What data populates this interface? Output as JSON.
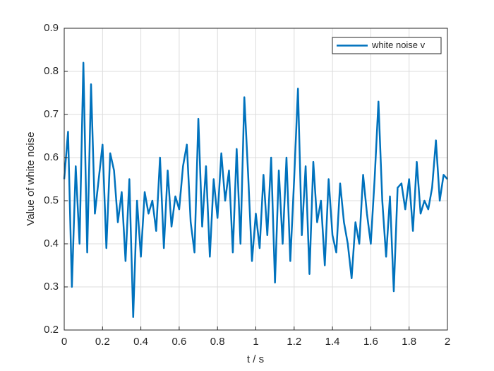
{
  "chart_data": {
    "type": "line",
    "xlabel": "t / s",
    "ylabel": "Value of white noise",
    "x": [
      0,
      0.02,
      0.04,
      0.06,
      0.08,
      0.1,
      0.12,
      0.14,
      0.16,
      0.18,
      0.2,
      0.22,
      0.24,
      0.26,
      0.28,
      0.3,
      0.32,
      0.34,
      0.36,
      0.38,
      0.4,
      0.42,
      0.44,
      0.46,
      0.48,
      0.5,
      0.52,
      0.54,
      0.56,
      0.58,
      0.6,
      0.62,
      0.64,
      0.66,
      0.68,
      0.7,
      0.72,
      0.74,
      0.76,
      0.78,
      0.8,
      0.82,
      0.84,
      0.86,
      0.88,
      0.9,
      0.92,
      0.94,
      0.96,
      0.98,
      1,
      1.02,
      1.04,
      1.06,
      1.08,
      1.1,
      1.12,
      1.14,
      1.16,
      1.18,
      1.2,
      1.22,
      1.24,
      1.26,
      1.28,
      1.3,
      1.32,
      1.34,
      1.36,
      1.38,
      1.4,
      1.42,
      1.44,
      1.46,
      1.48,
      1.5,
      1.52,
      1.54,
      1.56,
      1.58,
      1.6,
      1.62,
      1.64,
      1.66,
      1.68,
      1.7,
      1.72,
      1.74,
      1.76,
      1.78,
      1.8,
      1.82,
      1.84,
      1.86,
      1.88,
      1.9,
      1.92,
      1.94,
      1.96,
      1.98,
      2
    ],
    "series": [
      {
        "name": "white noise v",
        "color": "#0072bd",
        "values": [
          0.55,
          0.66,
          0.3,
          0.58,
          0.4,
          0.82,
          0.38,
          0.77,
          0.47,
          0.55,
          0.63,
          0.39,
          0.61,
          0.57,
          0.45,
          0.52,
          0.36,
          0.55,
          0.23,
          0.5,
          0.37,
          0.52,
          0.47,
          0.5,
          0.43,
          0.6,
          0.39,
          0.57,
          0.44,
          0.51,
          0.48,
          0.58,
          0.63,
          0.45,
          0.38,
          0.69,
          0.44,
          0.58,
          0.37,
          0.55,
          0.46,
          0.61,
          0.5,
          0.57,
          0.38,
          0.62,
          0.4,
          0.74,
          0.56,
          0.36,
          0.47,
          0.39,
          0.56,
          0.42,
          0.6,
          0.31,
          0.57,
          0.4,
          0.6,
          0.36,
          0.55,
          0.76,
          0.42,
          0.58,
          0.33,
          0.59,
          0.45,
          0.5,
          0.35,
          0.55,
          0.42,
          0.38,
          0.54,
          0.45,
          0.4,
          0.32,
          0.45,
          0.4,
          0.56,
          0.47,
          0.4,
          0.55,
          0.73,
          0.5,
          0.37,
          0.51,
          0.29,
          0.53,
          0.54,
          0.48,
          0.55,
          0.43,
          0.59,
          0.47,
          0.5,
          0.48,
          0.53,
          0.64,
          0.5,
          0.56,
          0.55
        ]
      }
    ],
    "xlim": [
      0,
      2
    ],
    "xticks": [
      0,
      0.2,
      0.4,
      0.6,
      0.8,
      1,
      1.2,
      1.4,
      1.6,
      1.8,
      2
    ],
    "ylim": [
      0.2,
      0.9
    ],
    "yticks": [
      0.2,
      0.3,
      0.4,
      0.5,
      0.6,
      0.7,
      0.8,
      0.9
    ],
    "grid": true,
    "legend": "top-right"
  }
}
